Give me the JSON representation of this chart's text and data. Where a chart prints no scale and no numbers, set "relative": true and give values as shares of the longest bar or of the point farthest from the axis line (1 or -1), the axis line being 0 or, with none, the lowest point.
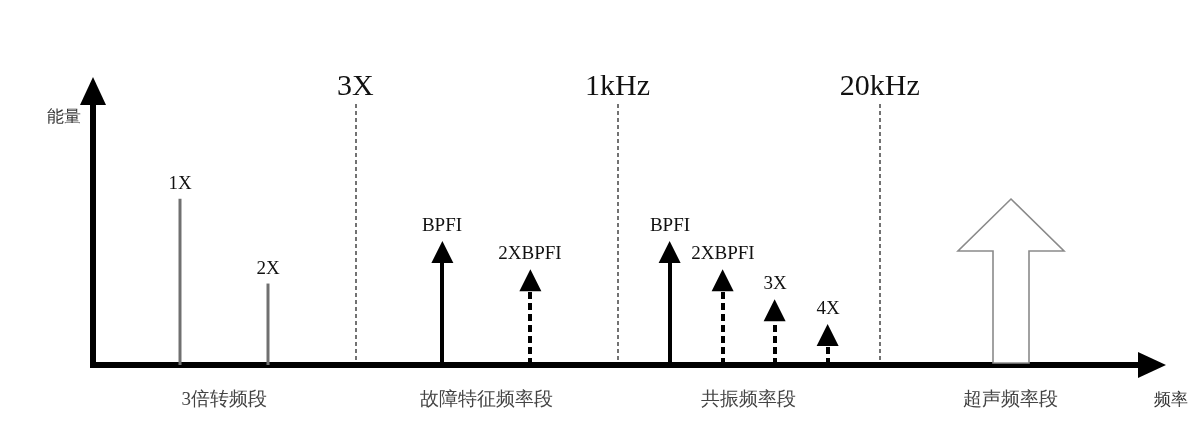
{
  "chart_data": {
    "type": "lollipop",
    "xlabel": "频率",
    "ylabel": "能量",
    "categories": [
      "3倍转频段",
      "故障特征频率段",
      "共振频率段",
      "超声频率段"
    ],
    "relative": true,
    "series": [
      {
        "name": "1X",
        "type": "bar",
        "color": "#707070",
        "values": [
          1,
          null,
          null,
          null
        ]
      },
      {
        "name": "2X",
        "type": "bar",
        "color": "#707070",
        "values": [
          0.49,
          null,
          null,
          null
        ]
      },
      {
        "name": "BPFI",
        "color": "#000000",
        "marker": "triangle",
        "line_style": "solid",
        "values": [
          null,
          0.68,
          0.68,
          null
        ]
      },
      {
        "name": "2XBPFI",
        "color": "#000000",
        "marker": "triangle",
        "line_style": "dashed",
        "values": [
          null,
          0.51,
          0.51,
          null
        ]
      },
      {
        "name": "3X",
        "color": "#000000",
        "marker": "triangle",
        "line_style": "dashed",
        "values": [
          null,
          null,
          0.33,
          null
        ]
      },
      {
        "name": "4X",
        "color": "#000000",
        "marker": "triangle",
        "line_style": "dashed",
        "values": [
          null,
          null,
          0.18,
          null
        ]
      }
    ],
    "annotations": [
      "3X",
      "1kHz",
      "20kHz"
    ],
    "grid": "x",
    "tick_labels": "x"
  }
}
